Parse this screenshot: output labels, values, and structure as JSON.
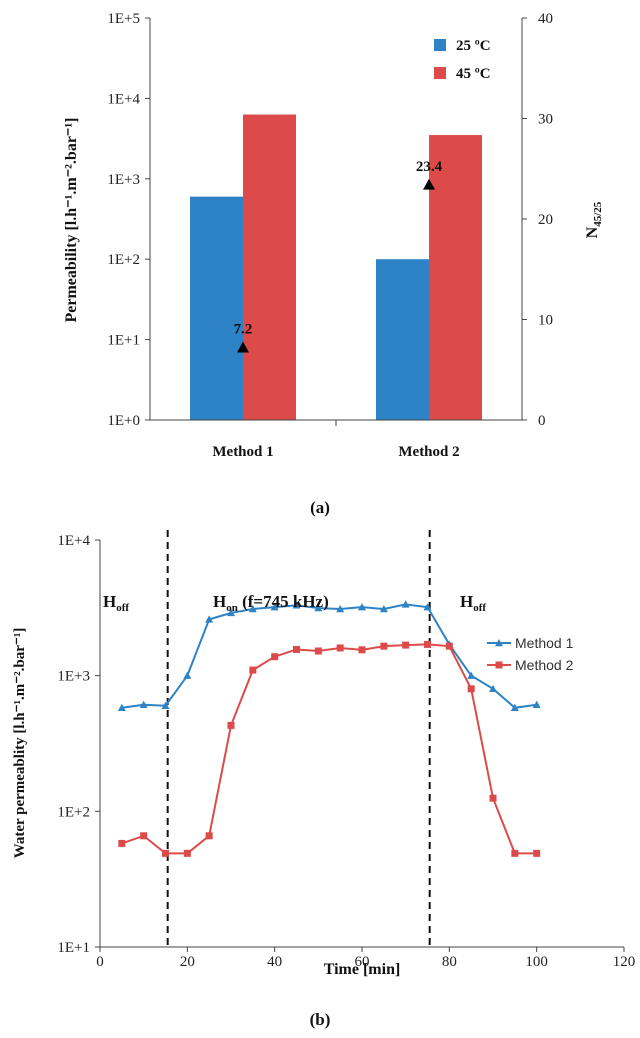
{
  "chart_data": [
    {
      "panel_label": "(a)",
      "type": "bar",
      "categories": [
        "Method 1",
        "Method 2"
      ],
      "series": [
        {
          "name": "25 ºC",
          "color": "#2e82c6",
          "values": [
            600,
            100
          ]
        },
        {
          "name": "45 ºC",
          "color": "#dc4a4a",
          "values": [
            6300,
            3500
          ]
        }
      ],
      "ylabel": "Permeability [l.h⁻¹.m⁻².bar⁻¹]",
      "yscale": "log",
      "ylim": [
        1,
        100000
      ],
      "yticks": [
        "1E+0",
        "1E+1",
        "1E+2",
        "1E+3",
        "1E+4",
        "1E+5"
      ],
      "y2label_main": "N",
      "y2label_sub": "45/25",
      "y2lim": [
        0,
        40
      ],
      "y2ticks": [
        "0",
        "10",
        "20",
        "30",
        "40"
      ],
      "secondary_markers": {
        "marker": "triangle",
        "color": "#000000",
        "values": [
          7.2,
          23.4
        ],
        "labels": [
          "7.2",
          "23.4"
        ]
      },
      "legend_position": "top-right",
      "grid": false
    },
    {
      "panel_label": "(b)",
      "type": "line",
      "xlabel": "Time [min]",
      "ylabel": "Water permeablity [l.h⁻¹.m⁻².bar⁻¹]",
      "xlim": [
        0,
        120
      ],
      "xticks": [
        "0",
        "20",
        "40",
        "60",
        "80",
        "100",
        "120"
      ],
      "yscale": "log",
      "ylim": [
        10,
        10000
      ],
      "yticks": [
        "1E+1",
        "1E+2",
        "1E+3",
        "1E+4"
      ],
      "series": [
        {
          "name": "Method 1",
          "color": "#2e82c6",
          "marker": "triangle",
          "x": [
            5,
            10,
            15,
            20,
            25,
            30,
            35,
            40,
            45,
            50,
            55,
            60,
            65,
            70,
            75,
            80,
            85,
            90,
            95,
            100
          ],
          "y": [
            580,
            610,
            600,
            1000,
            2600,
            2900,
            3100,
            3200,
            3300,
            3150,
            3100,
            3200,
            3100,
            3350,
            3200,
            1700,
            1000,
            800,
            580,
            610
          ]
        },
        {
          "name": "Method 2",
          "color": "#dc4a4a",
          "marker": "square",
          "x": [
            5,
            10,
            15,
            20,
            25,
            30,
            35,
            40,
            45,
            50,
            55,
            60,
            65,
            70,
            75,
            80,
            85,
            90,
            95,
            100
          ],
          "y": [
            58,
            66,
            49,
            49,
            66,
            430,
            1100,
            1380,
            1560,
            1520,
            1600,
            1550,
            1650,
            1680,
            1700,
            1650,
            800,
            125,
            49,
            49
          ]
        }
      ],
      "dividers": [
        15.5,
        75.5
      ],
      "region_labels": [
        {
          "main": "H",
          "sub": "off"
        },
        {
          "main": "H",
          "sub": "on",
          "suffix": " (f=745 kHz)"
        },
        {
          "main": "H",
          "sub": "off"
        }
      ],
      "legend_position": "right",
      "grid": false
    }
  ]
}
